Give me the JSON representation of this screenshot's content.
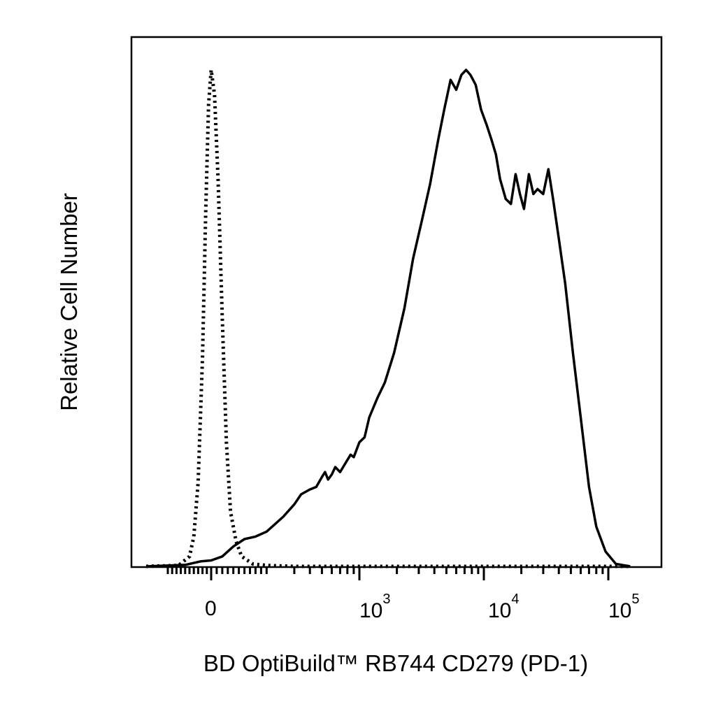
{
  "chart_data": {
    "type": "line",
    "title": "",
    "xlabel": "BD OptiBuild™ RB744 CD279 (PD-1)",
    "ylabel": "Relative Cell Number",
    "x_scale": "biexponential",
    "xlim": [
      -300,
      150000
    ],
    "ylim": [
      0,
      1
    ],
    "grid": false,
    "x_tick_labels": [
      {
        "base": "0",
        "exp": "",
        "value": 0
      },
      {
        "base": "10",
        "exp": "3",
        "value": 1000
      },
      {
        "base": "10",
        "exp": "4",
        "value": 10000
      },
      {
        "base": "10",
        "exp": "5",
        "value": 100000
      }
    ],
    "series": [
      {
        "line_style": "dotted",
        "color": "#000000",
        "points": [
          [
            -300,
            0
          ],
          [
            -150,
            0.002
          ],
          [
            -100,
            0.02
          ],
          [
            -80,
            0.06
          ],
          [
            -60,
            0.17
          ],
          [
            -40,
            0.42
          ],
          [
            -25,
            0.72
          ],
          [
            -12,
            0.93
          ],
          [
            0,
            1.0
          ],
          [
            12,
            0.95
          ],
          [
            25,
            0.78
          ],
          [
            40,
            0.5
          ],
          [
            55,
            0.25
          ],
          [
            70,
            0.11
          ],
          [
            90,
            0.05
          ],
          [
            110,
            0.02
          ],
          [
            150,
            0.005
          ],
          [
            200,
            0.002
          ],
          [
            300,
            0
          ],
          [
            500,
            0
          ],
          [
            150000,
            0
          ]
        ]
      },
      {
        "line_style": "solid",
        "color": "#000000",
        "points": [
          [
            -300,
            0
          ],
          [
            -120,
            0.003
          ],
          [
            -50,
            0.01
          ],
          [
            0,
            0.012
          ],
          [
            40,
            0.02
          ],
          [
            80,
            0.04
          ],
          [
            120,
            0.055
          ],
          [
            160,
            0.06
          ],
          [
            200,
            0.07
          ],
          [
            260,
            0.1
          ],
          [
            300,
            0.125
          ],
          [
            340,
            0.145
          ],
          [
            400,
            0.155
          ],
          [
            450,
            0.16
          ],
          [
            500,
            0.18
          ],
          [
            530,
            0.19
          ],
          [
            560,
            0.175
          ],
          [
            600,
            0.185
          ],
          [
            640,
            0.2
          ],
          [
            700,
            0.19
          ],
          [
            760,
            0.205
          ],
          [
            850,
            0.225
          ],
          [
            900,
            0.22
          ],
          [
            1000,
            0.25
          ],
          [
            1100,
            0.26
          ],
          [
            1200,
            0.3
          ],
          [
            1400,
            0.34
          ],
          [
            1600,
            0.37
          ],
          [
            1900,
            0.43
          ],
          [
            2300,
            0.52
          ],
          [
            2700,
            0.62
          ],
          [
            3200,
            0.7
          ],
          [
            3700,
            0.77
          ],
          [
            4300,
            0.86
          ],
          [
            4800,
            0.92
          ],
          [
            5400,
            0.98
          ],
          [
            6000,
            0.96
          ],
          [
            6600,
            0.99
          ],
          [
            7200,
            1.0
          ],
          [
            7800,
            0.99
          ],
          [
            8600,
            0.97
          ],
          [
            9500,
            0.92
          ],
          [
            10500,
            0.89
          ],
          [
            11500,
            0.86
          ],
          [
            12500,
            0.83
          ],
          [
            13500,
            0.78
          ],
          [
            15000,
            0.74
          ],
          [
            16500,
            0.73
          ],
          [
            18000,
            0.79
          ],
          [
            19500,
            0.75
          ],
          [
            21000,
            0.72
          ],
          [
            23000,
            0.79
          ],
          [
            25000,
            0.75
          ],
          [
            27000,
            0.76
          ],
          [
            30000,
            0.75
          ],
          [
            33000,
            0.8
          ],
          [
            36000,
            0.74
          ],
          [
            40000,
            0.66
          ],
          [
            45000,
            0.57
          ],
          [
            52000,
            0.43
          ],
          [
            60000,
            0.3
          ],
          [
            70000,
            0.16
          ],
          [
            80000,
            0.08
          ],
          [
            95000,
            0.03
          ],
          [
            115000,
            0.005
          ],
          [
            150000,
            0
          ]
        ]
      }
    ]
  }
}
